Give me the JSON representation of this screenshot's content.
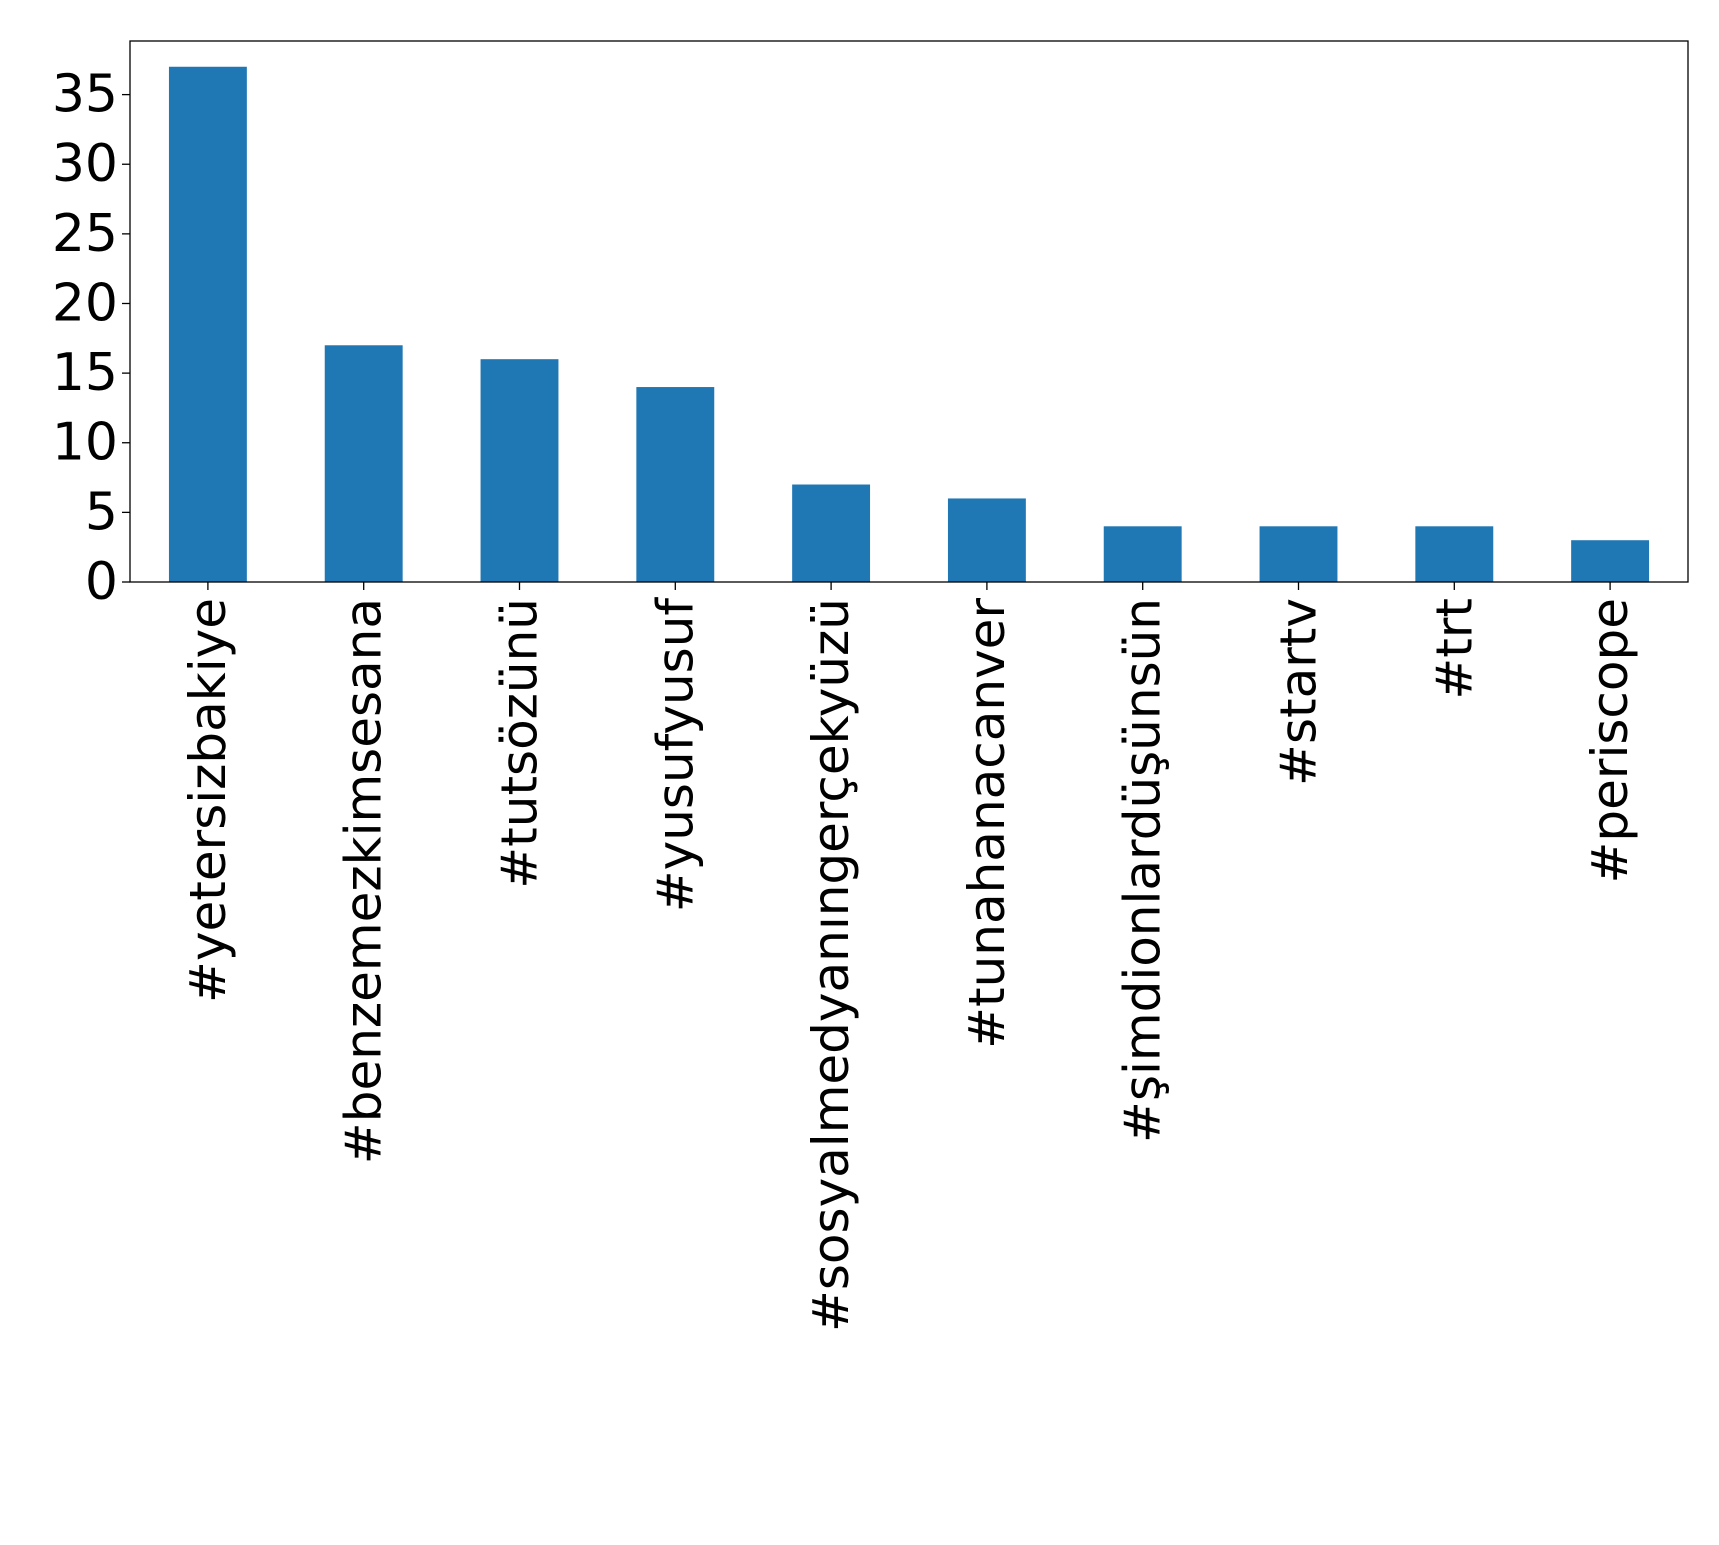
{
  "chart_data": {
    "type": "bar",
    "title": "",
    "xlabel": "",
    "ylabel": "",
    "categories": [
      "#yetersizbakiye",
      "#benzemezkimsesana",
      "#tutsözünü",
      "#yusufyusuf",
      "#sosyalmedyanıngerçekyüzü",
      "#tunahanacanver",
      "#şimdionlardüşünsün",
      "#startv",
      "#trt",
      "#periscope"
    ],
    "values": [
      37,
      17,
      16,
      14,
      7,
      6,
      4,
      4,
      4,
      3
    ],
    "ylim": [
      0,
      38.85
    ],
    "yticks": [
      0,
      5,
      10,
      15,
      20,
      25,
      30,
      35
    ],
    "grid": false,
    "bar_color": "#1f77b4",
    "axis_color": "#000000",
    "background": "#ffffff"
  }
}
